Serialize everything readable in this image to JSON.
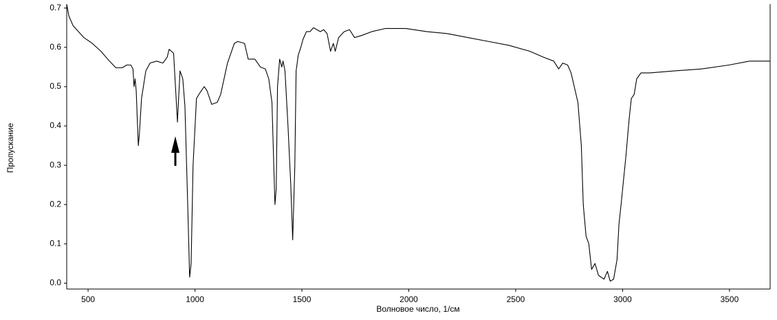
{
  "chart_data": {
    "type": "line",
    "xlabel": "Волновое число, 1/см",
    "ylabel": "Пропускание",
    "xlim": [
      400,
      3690
    ],
    "ylim": [
      -0.015,
      0.71
    ],
    "xticks": [
      500,
      1000,
      1500,
      2000,
      2500,
      3000,
      3500
    ],
    "yticks": [
      {
        "value": 0,
        "label": "0.0"
      },
      0.1,
      0.2,
      0.3,
      0.4,
      0.5,
      0.6,
      0.7
    ],
    "color": "#000000",
    "x": [
      400,
      410,
      430,
      480,
      520,
      560,
      600,
      630,
      660,
      680,
      700,
      710,
      715,
      720,
      725,
      730,
      735,
      740,
      750,
      770,
      790,
      820,
      850,
      870,
      879,
      900,
      918,
      930,
      943,
      953,
      966,
      975,
      982,
      991,
      1007,
      1024,
      1043,
      1056,
      1078,
      1104,
      1120,
      1152,
      1184,
      1200,
      1232,
      1249,
      1280,
      1306,
      1329,
      1345,
      1360,
      1374,
      1380,
      1386,
      1396,
      1406,
      1412,
      1421,
      1435,
      1448,
      1457,
      1467,
      1473,
      1483,
      1495,
      1505,
      1521,
      1538,
      1554,
      1586,
      1602,
      1618,
      1634,
      1647,
      1656,
      1672,
      1698,
      1723,
      1746,
      1778,
      1827,
      1891,
      1987,
      2084,
      2180,
      2276,
      2373,
      2469,
      2566,
      2630,
      2678,
      2701,
      2720,
      2743,
      2759,
      2791,
      2807,
      2816,
      2829,
      2842,
      2855,
      2871,
      2887,
      2913,
      2929,
      2942,
      2958,
      2974,
      2983,
      2993,
      3002,
      3015,
      3031,
      3041,
      3054,
      3066,
      3086,
      3128,
      3240,
      3369,
      3497,
      3594,
      3690
    ],
    "values": [
      0.71,
      0.68,
      0.655,
      0.625,
      0.61,
      0.59,
      0.565,
      0.548,
      0.548,
      0.555,
      0.555,
      0.545,
      0.5,
      0.52,
      0.49,
      0.42,
      0.35,
      0.38,
      0.47,
      0.54,
      0.56,
      0.565,
      0.56,
      0.575,
      0.595,
      0.585,
      0.41,
      0.54,
      0.52,
      0.45,
      0.2,
      0.015,
      0.05,
      0.3,
      0.47,
      0.485,
      0.5,
      0.49,
      0.455,
      0.46,
      0.48,
      0.56,
      0.61,
      0.615,
      0.61,
      0.57,
      0.57,
      0.55,
      0.545,
      0.52,
      0.46,
      0.2,
      0.24,
      0.5,
      0.57,
      0.55,
      0.565,
      0.54,
      0.4,
      0.25,
      0.11,
      0.3,
      0.54,
      0.58,
      0.6,
      0.62,
      0.64,
      0.64,
      0.65,
      0.64,
      0.645,
      0.635,
      0.59,
      0.61,
      0.59,
      0.625,
      0.64,
      0.645,
      0.625,
      0.63,
      0.64,
      0.648,
      0.648,
      0.64,
      0.635,
      0.625,
      0.615,
      0.605,
      0.59,
      0.575,
      0.565,
      0.545,
      0.56,
      0.555,
      0.535,
      0.46,
      0.35,
      0.2,
      0.12,
      0.1,
      0.035,
      0.05,
      0.02,
      0.01,
      0.03,
      0.005,
      0.01,
      0.06,
      0.15,
      0.2,
      0.25,
      0.32,
      0.42,
      0.47,
      0.48,
      0.52,
      0.535,
      0.535,
      0.54,
      0.545,
      0.555,
      0.565,
      0.565
    ]
  }
}
